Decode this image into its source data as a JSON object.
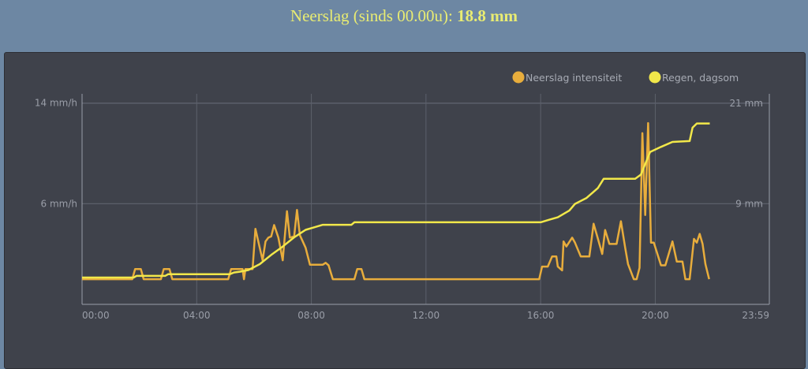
{
  "header": {
    "label": "Neerslag (sinds 00.00u):",
    "value": "18.8 mm",
    "title_color": "#e9ec72"
  },
  "chart_data": {
    "type": "line",
    "x_ticks": [
      "00:00",
      "04:00",
      "08:00",
      "12:00",
      "16:00",
      "20:00",
      "23:59"
    ],
    "x_tick_hours": [
      0,
      4,
      8,
      12,
      16,
      20,
      23.98
    ],
    "xlim_hours": [
      0,
      23.98
    ],
    "y_left": {
      "ticks": [
        {
          "v": 14,
          "label": "14 mm/h"
        },
        {
          "v": 6,
          "label": "6 mm/h"
        }
      ],
      "range": [
        -2,
        14.1
      ]
    },
    "y_right": {
      "ticks": [
        {
          "v": 21,
          "label": "21 mm"
        },
        {
          "v": 9,
          "label": "9 mm"
        }
      ],
      "range": [
        -3,
        21.2
      ]
    },
    "grid": true,
    "legend_position": "top-right",
    "series": [
      {
        "name": "Neerslag intensiteit",
        "color": "#e8ad3c",
        "axis": "left",
        "x": [
          0,
          1.75,
          1.85,
          2.05,
          2.15,
          2.75,
          2.85,
          3.05,
          3.15,
          5.1,
          5.2,
          5.6,
          5.65,
          5.7,
          5.95,
          6.05,
          6.3,
          6.4,
          6.5,
          6.6,
          6.7,
          6.85,
          7.0,
          7.15,
          7.25,
          7.4,
          7.5,
          7.6,
          7.8,
          7.95,
          8.4,
          8.5,
          8.6,
          8.75,
          9.5,
          9.6,
          9.75,
          9.85,
          15.95,
          16.05,
          16.25,
          16.4,
          16.55,
          16.6,
          16.75,
          16.8,
          16.9,
          17.1,
          17.2,
          17.4,
          17.7,
          17.85,
          18.0,
          18.15,
          18.25,
          18.4,
          18.65,
          18.8,
          18.95,
          19.05,
          19.25,
          19.35,
          19.45,
          19.55,
          19.65,
          19.75,
          19.85,
          19.95,
          20.2,
          20.35,
          20.6,
          20.75,
          20.95,
          21.05,
          21.2,
          21.35,
          21.45,
          21.55,
          21.65,
          21.75,
          21.88
        ],
        "y": [
          0,
          0,
          0.8,
          0.8,
          0,
          0,
          0.8,
          0.8,
          0,
          0,
          0.8,
          0.8,
          0,
          0.8,
          0.8,
          4.0,
          1.5,
          3.0,
          3.3,
          3.4,
          4.3,
          3.3,
          1.5,
          5.4,
          3.3,
          3.4,
          5.5,
          3.5,
          2.5,
          1.15,
          1.15,
          1.3,
          1.1,
          0,
          0,
          0.8,
          0.8,
          0,
          0,
          1.0,
          1.0,
          1.8,
          1.8,
          1.0,
          0.7,
          3.0,
          2.6,
          3.3,
          2.9,
          1.8,
          1.8,
          4.4,
          3.2,
          2.0,
          3.9,
          2.8,
          2.8,
          4.6,
          2.5,
          1.2,
          0,
          0,
          0.9,
          11.6,
          5.1,
          12.4,
          2.9,
          2.9,
          1.1,
          1.1,
          3.0,
          1.4,
          1.4,
          0,
          0,
          3.2,
          2.9,
          3.6,
          2.8,
          1.2,
          0
        ]
      },
      {
        "name": "Regen, dagsom",
        "color": "#f2e84a",
        "axis": "right",
        "x": [
          0,
          1.8,
          1.9,
          2.9,
          3.0,
          5.15,
          5.3,
          5.5,
          5.8,
          6.2,
          6.6,
          7.0,
          7.4,
          7.8,
          8.1,
          8.4,
          9.4,
          9.5,
          16.0,
          16.3,
          16.6,
          17.0,
          17.2,
          17.6,
          18.0,
          18.2,
          19.3,
          19.5,
          19.82,
          20.2,
          20.6,
          21.2,
          21.3,
          21.45,
          21.9
        ],
        "y": [
          0.2,
          0.2,
          0.4,
          0.4,
          0.6,
          0.6,
          0.8,
          0.9,
          1.1,
          1.8,
          2.9,
          3.9,
          5.0,
          5.9,
          6.2,
          6.5,
          6.5,
          6.8,
          6.8,
          7.1,
          7.4,
          8.2,
          9.0,
          9.7,
          10.9,
          12.0,
          12.0,
          12.5,
          15.2,
          15.8,
          16.4,
          16.5,
          18.1,
          18.6,
          18.6
        ]
      }
    ]
  }
}
